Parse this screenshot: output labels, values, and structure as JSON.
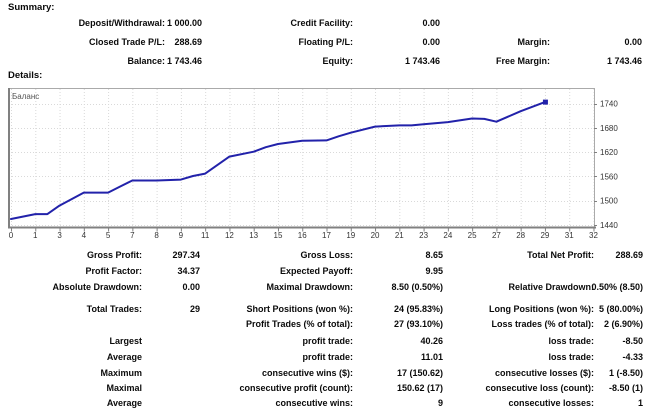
{
  "summary": {
    "title": "Summary:",
    "rows": [
      {
        "c1l": "Deposit/Withdrawal:",
        "c1v": "1 000.00",
        "c2l": "Credit Facility:",
        "c2v": "0.00"
      },
      {
        "c1l": "Closed Trade P/L:",
        "c1v": "288.69",
        "c2l": "Floating P/L:",
        "c2v": "0.00",
        "c3l": "Margin:",
        "c3v": "0.00"
      },
      {
        "c1l": "Balance:",
        "c1v": "1 743.46",
        "c2l": "Equity:",
        "c2v": "1 743.46",
        "c3l": "Free Margin:",
        "c3v": "1 743.46"
      }
    ]
  },
  "details": {
    "title": "Details:",
    "rows": [
      {
        "c1l": "Gross Profit:",
        "c1v": "297.34",
        "c2l": "Gross Loss:",
        "c2v": "8.65",
        "c3l": "Total Net Profit:",
        "c3v": "288.69"
      },
      {
        "c1l": "Profit Factor:",
        "c1v": "34.37",
        "c2l": "Expected Payoff:",
        "c2v": "9.95"
      },
      {
        "c1l": "Absolute Drawdown:",
        "c1v": "0.00",
        "c2l": "Maximal Drawdown:",
        "c2v": "8.50 (0.50%)",
        "c3l": "Relative Drawdown:",
        "c3v": "0.50% (8.50)"
      },
      {
        "c1l": "Total Trades:",
        "c1v": "29",
        "c2l": "Short Positions (won %):",
        "c2v": "24 (95.83%)",
        "c3l": "Long Positions (won %):",
        "c3v": "5 (80.00%)"
      },
      {
        "c2l": "Profit Trades (% of total):",
        "c2v": "27 (93.10%)",
        "c3l": "Loss trades (% of total):",
        "c3v": "2 (6.90%)"
      },
      {
        "c1l": "Largest",
        "c2l": "profit trade:",
        "c2v": "40.26",
        "c3l": "loss trade:",
        "c3v": "-8.50"
      },
      {
        "c1l": "Average",
        "c2l": "profit trade:",
        "c2v": "11.01",
        "c3l": "loss trade:",
        "c3v": "-4.33"
      },
      {
        "c1l": "Maximum",
        "c2l": "consecutive wins ($):",
        "c2v": "17 (150.62)",
        "c3l": "consecutive losses ($):",
        "c3v": "1 (-8.50)"
      },
      {
        "c1l": "Maximal",
        "c2l": "consecutive profit (count):",
        "c2v": "150.62 (17)",
        "c3l": "consecutive loss (count):",
        "c3v": "-8.50 (1)"
      },
      {
        "c1l": "Average",
        "c2l": "consecutive wins:",
        "c2v": "9",
        "c3l": "consecutive losses:",
        "c3v": "1"
      }
    ]
  },
  "chart_data": {
    "type": "line",
    "title": "",
    "legend_label": "Баланс",
    "series": [
      {
        "name": "Баланс",
        "x": [
          0,
          1,
          2,
          3,
          4,
          5,
          6,
          7,
          8,
          9,
          10,
          11,
          12,
          13,
          14,
          15,
          16,
          17,
          18,
          19,
          20,
          21,
          22,
          23,
          24,
          25,
          26,
          27,
          28,
          29
        ],
        "values": [
          1454.77,
          1467,
          1467,
          1488,
          1520,
          1520,
          1535,
          1550,
          1550,
          1552,
          1561,
          1567,
          1609,
          1621,
          1632,
          1640,
          1648,
          1649,
          1659,
          1668,
          1683,
          1686,
          1686,
          1689,
          1694,
          1703,
          1702,
          1695,
          1721,
          1743.46
        ]
      }
    ],
    "x_ticks": [
      0,
      1,
      3,
      4,
      5,
      7,
      8,
      9,
      11,
      12,
      13,
      15,
      16,
      17,
      19,
      20,
      21,
      23,
      24,
      25,
      27,
      28,
      29,
      31,
      32
    ],
    "y_ticks": [
      1440,
      1500,
      1560,
      1620,
      1680,
      1740
    ],
    "y_tick_step": 60,
    "ylim": [
      1435,
      1778
    ],
    "grid": "dotted",
    "legend_position": "top-left",
    "colors": {
      "line": "#2222aa",
      "grid": "#d9d9d9",
      "border": "#aaaaaa",
      "axis": "#808080",
      "tick_label": "#333333"
    }
  }
}
